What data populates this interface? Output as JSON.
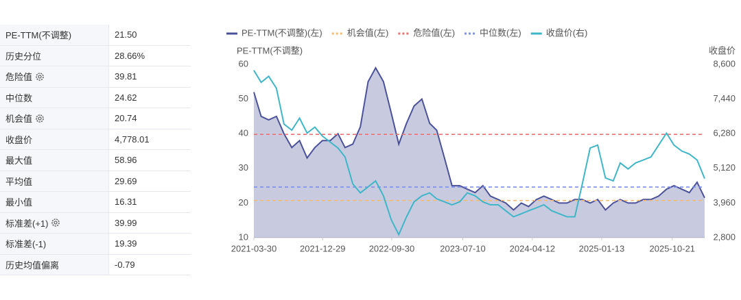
{
  "table": {
    "rows": [
      {
        "label": "PE-TTM(不调整)",
        "value": "21.50"
      },
      {
        "label": "历史分位",
        "value": "28.66%"
      },
      {
        "label": "危险值",
        "value": "39.81",
        "gear": true
      },
      {
        "label": "中位数",
        "value": "24.62"
      },
      {
        "label": "机会值",
        "value": "20.74",
        "gear": true
      },
      {
        "label": "收盘价",
        "value": "4,778.01"
      },
      {
        "label": "最大值",
        "value": "58.96"
      },
      {
        "label": "平均值",
        "value": "29.69"
      },
      {
        "label": "最小值",
        "value": "16.31"
      },
      {
        "label": "标准差(+1)",
        "value": "39.99",
        "gear": true
      },
      {
        "label": "标准差(-1)",
        "value": "19.39"
      },
      {
        "label": "历史均值偏离",
        "value": "-0.79"
      }
    ]
  },
  "chart_data": {
    "type": "line",
    "ylabel": "PE-TTM(不调整)",
    "y2label": "收盘价",
    "x": [
      "2021-03-30",
      "2021-04-28",
      "2021-05-28",
      "2021-06-28",
      "2021-07-28",
      "2021-08-28",
      "2021-09-28",
      "2021-10-28",
      "2021-11-28",
      "2021-12-28",
      "2022-01-28",
      "2022-02-28",
      "2022-03-28",
      "2022-04-28",
      "2022-05-28",
      "2022-06-28",
      "2022-07-28",
      "2022-08-28",
      "2022-09-28",
      "2022-10-28",
      "2022-11-28",
      "2022-12-28",
      "2023-01-28",
      "2023-02-28",
      "2023-03-28",
      "2023-04-28",
      "2023-05-28",
      "2023-06-28",
      "2023-07-28",
      "2023-08-28",
      "2023-09-28",
      "2023-10-28",
      "2023-11-28",
      "2023-12-28",
      "2024-01-28",
      "2024-02-28",
      "2024-03-28",
      "2024-04-28",
      "2024-05-28",
      "2024-06-28",
      "2024-07-28",
      "2024-08-28",
      "2024-09-28",
      "2024-10-28",
      "2024-11-28",
      "2024-12-28",
      "2025-01-28",
      "2025-02-28",
      "2025-03-28",
      "2025-04-28",
      "2025-05-28",
      "2025-06-28",
      "2025-07-28",
      "2025-08-28",
      "2025-09-28",
      "2025-10-28",
      "2025-11-28",
      "2025-12-28",
      "2026-01-28",
      "2026-02-27"
    ],
    "xlim": [
      "2021-03-30",
      "2026-02-27"
    ],
    "xticks": [
      "2021-03-30",
      "2021-12-29",
      "2022-09-30",
      "2023-07-10",
      "2024-04-12",
      "2025-01-13",
      "2025-10-21"
    ],
    "ylim": [
      10,
      60
    ],
    "yticks": [
      10,
      20,
      30,
      40,
      50,
      60
    ],
    "y2lim": [
      2800,
      8600
    ],
    "y2ticks": [
      {
        "value": 2800,
        "label": "2,800"
      },
      {
        "value": 3960,
        "label": "3,960"
      },
      {
        "value": 5120,
        "label": "5,120"
      },
      {
        "value": 6280,
        "label": "6,280"
      },
      {
        "value": 7440,
        "label": "7,440"
      },
      {
        "value": 8600,
        "label": "8,600"
      }
    ],
    "grid": false,
    "series": [
      {
        "name": "PE-TTM(不调整)(左)",
        "color": "#4a5199",
        "area": true,
        "values": [
          52,
          45,
          44,
          45,
          40,
          36,
          38,
          33,
          36,
          38,
          38,
          40,
          36,
          37,
          42,
          55,
          59,
          55,
          46,
          37,
          43,
          48,
          50,
          43,
          41,
          33,
          25,
          25,
          24,
          23,
          25,
          22,
          21,
          20,
          18,
          20,
          19,
          21,
          22,
          21,
          20,
          20,
          21,
          21,
          20,
          21,
          18,
          20,
          21,
          20,
          20,
          21,
          21,
          22,
          24,
          25,
          24,
          23,
          26,
          21.5
        ]
      },
      {
        "name": "收盘价(右)",
        "color": "#3fb6c8",
        "axis": "y2",
        "values": [
          8400,
          8000,
          8200,
          7800,
          6600,
          6400,
          6800,
          6300,
          6500,
          6200,
          6000,
          5800,
          5500,
          4600,
          4300,
          4500,
          4700,
          4200,
          3400,
          2900,
          3500,
          4000,
          4200,
          4300,
          4100,
          4000,
          3900,
          4000,
          4300,
          4200,
          4000,
          3900,
          3900,
          3700,
          3500,
          3600,
          3700,
          3800,
          3900,
          3700,
          3600,
          3500,
          3500,
          4600,
          5800,
          5900,
          4800,
          4700,
          5300,
          5100,
          5300,
          5400,
          5500,
          5900,
          6300,
          5900,
          5700,
          5600,
          5400,
          4778.01
        ]
      }
    ],
    "reference_lines": [
      {
        "name": "机会值(左)",
        "color": "#f5b971",
        "value": 20.74
      },
      {
        "name": "危险值(左)",
        "color": "#f07070",
        "value": 39.81
      },
      {
        "name": "中位数(左)",
        "color": "#7b8ff0",
        "value": 24.62
      }
    ]
  }
}
